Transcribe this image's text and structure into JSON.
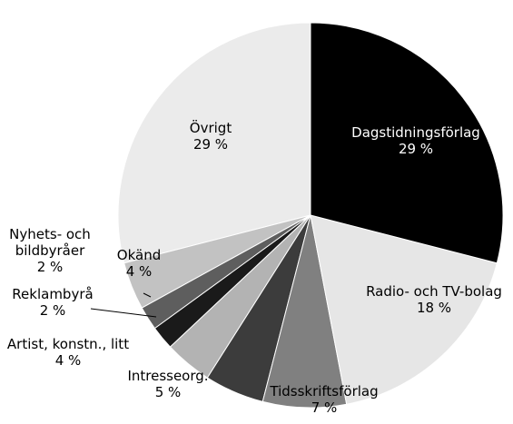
{
  "chart_data": {
    "type": "pie",
    "categories": [
      "Dagstidningsförlag",
      "Radio- och TV-bolag",
      "Tidsskriftsförlag",
      "Intresseorg.",
      "Artist, konstn., litt",
      "Reklambyrå",
      "Nyhets- och bildbyråer",
      "Okänd",
      "Övrigt"
    ],
    "values": [
      29,
      18,
      7,
      5,
      4,
      2,
      2,
      4,
      29
    ],
    "value_labels": [
      "29 %",
      "18 %",
      "7 %",
      "5 %",
      "4 %",
      "2 %",
      "2 %",
      "4 %",
      "29 %"
    ],
    "colors": [
      "#000000",
      "#e6e6e6",
      "#808080",
      "#3c3c3c",
      "#b3b3b3",
      "#1a1a1a",
      "#5e5e5e",
      "#c2c2c2",
      "#ebebeb"
    ],
    "start_angle": 90,
    "direction": "clockwise"
  }
}
